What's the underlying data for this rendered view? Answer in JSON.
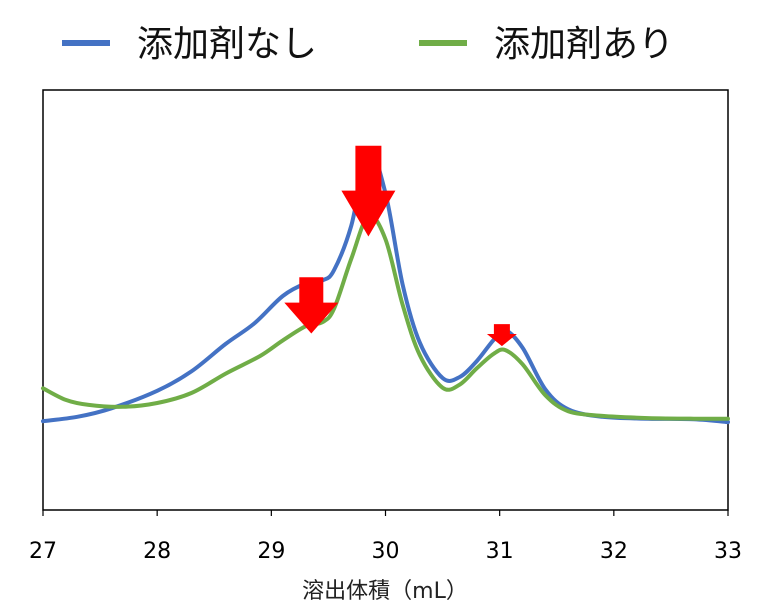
{
  "chart_data": {
    "type": "line",
    "title": "",
    "xlabel": "溶出体積（mL）",
    "ylabel": "",
    "xlim": [
      27,
      33
    ],
    "ylim": [
      0,
      1
    ],
    "x_ticks": [
      "27",
      "28",
      "29",
      "30",
      "31",
      "32",
      "33"
    ],
    "grid": false,
    "legend_position": "top",
    "series": [
      {
        "name": "添加剤なし",
        "color": "#4472C4",
        "points": [
          [
            27.0,
            0.14
          ],
          [
            27.3,
            0.154
          ],
          [
            27.6,
            0.181
          ],
          [
            28.0,
            0.237
          ],
          [
            28.3,
            0.299
          ],
          [
            28.6,
            0.387
          ],
          [
            28.85,
            0.452
          ],
          [
            29.1,
            0.54
          ],
          [
            29.3,
            0.58
          ],
          [
            29.45,
            0.59
          ],
          [
            29.55,
            0.623
          ],
          [
            29.7,
            0.764
          ],
          [
            29.85,
            1.0
          ],
          [
            30.0,
            0.868
          ],
          [
            30.15,
            0.577
          ],
          [
            30.3,
            0.391
          ],
          [
            30.5,
            0.278
          ],
          [
            30.65,
            0.281
          ],
          [
            30.8,
            0.332
          ],
          [
            30.95,
            0.401
          ],
          [
            31.05,
            0.43
          ],
          [
            31.2,
            0.375
          ],
          [
            31.4,
            0.242
          ],
          [
            31.6,
            0.178
          ],
          [
            31.9,
            0.154
          ],
          [
            32.3,
            0.148
          ],
          [
            32.7,
            0.146
          ],
          [
            33.0,
            0.137
          ]
        ]
      },
      {
        "name": "添加剤あり",
        "color": "#70AD47",
        "points": [
          [
            27.0,
            0.245
          ],
          [
            27.2,
            0.208
          ],
          [
            27.4,
            0.192
          ],
          [
            27.7,
            0.186
          ],
          [
            28.0,
            0.198
          ],
          [
            28.3,
            0.23
          ],
          [
            28.6,
            0.292
          ],
          [
            28.9,
            0.348
          ],
          [
            29.1,
            0.398
          ],
          [
            29.3,
            0.443
          ],
          [
            29.45,
            0.457
          ],
          [
            29.55,
            0.5
          ],
          [
            29.7,
            0.658
          ],
          [
            29.85,
            0.795
          ],
          [
            30.0,
            0.721
          ],
          [
            30.15,
            0.512
          ],
          [
            30.3,
            0.351
          ],
          [
            30.5,
            0.247
          ],
          [
            30.65,
            0.257
          ],
          [
            30.8,
            0.309
          ],
          [
            30.95,
            0.356
          ],
          [
            31.05,
            0.367
          ],
          [
            31.2,
            0.322
          ],
          [
            31.4,
            0.223
          ],
          [
            31.6,
            0.172
          ],
          [
            31.9,
            0.157
          ],
          [
            32.3,
            0.15
          ],
          [
            32.7,
            0.148
          ],
          [
            33.0,
            0.148
          ]
        ]
      }
    ],
    "annotations": [
      {
        "type": "arrow-down",
        "color": "#FF0000",
        "x": 29.35,
        "y": 0.6,
        "depth": 0.18,
        "size": "medium"
      },
      {
        "type": "arrow-down",
        "color": "#FF0000",
        "x": 29.85,
        "y": 1.02,
        "depth": 0.29,
        "size": "large"
      },
      {
        "type": "arrow-down",
        "color": "#FF0000",
        "x": 31.02,
        "y": 0.45,
        "depth": 0.07,
        "size": "small"
      }
    ]
  }
}
